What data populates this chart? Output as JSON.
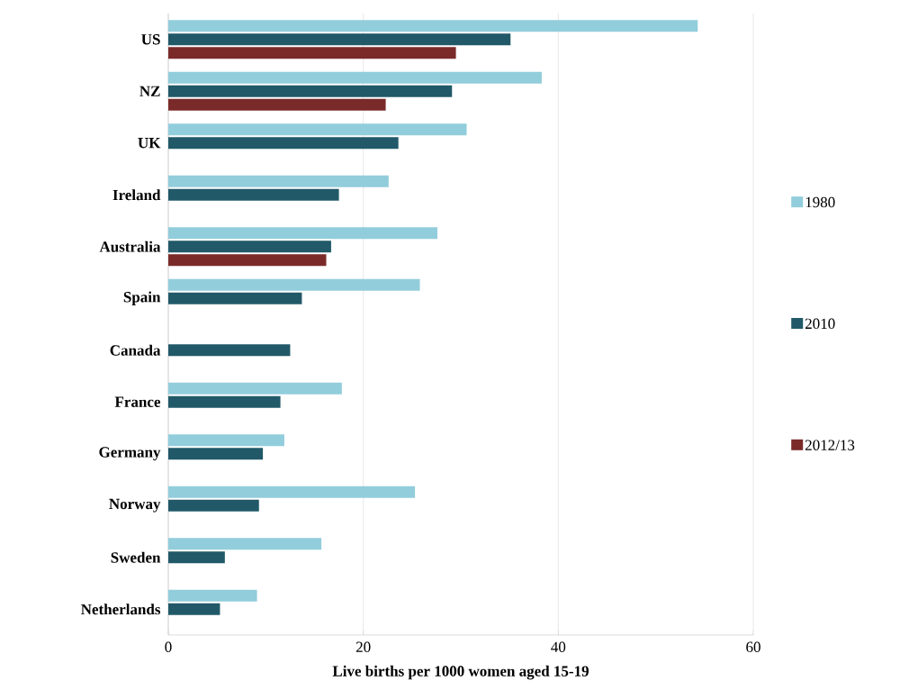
{
  "chart_data": {
    "type": "bar",
    "orientation": "horizontal",
    "xlabel": "Live births per 1000  women aged 15-19",
    "categories": [
      "US",
      "NZ",
      "UK",
      "Ireland",
      "Australia",
      "Spain",
      "Canada",
      "France",
      "Germany",
      "Norway",
      "Sweden",
      "Netherlands"
    ],
    "series": [
      {
        "name": "1980",
        "color": "#92cddc",
        "values": [
          54.3,
          38.3,
          30.6,
          22.6,
          27.6,
          25.8,
          null,
          17.8,
          11.9,
          25.3,
          15.7,
          9.1
        ]
      },
      {
        "name": "2010",
        "color": "#215968",
        "values": [
          35.1,
          29.1,
          23.6,
          17.5,
          16.7,
          13.7,
          12.5,
          11.5,
          9.7,
          9.3,
          5.8,
          5.3
        ]
      },
      {
        "name": "2012/13",
        "color": "#7b2a2a",
        "values": [
          29.5,
          22.3,
          null,
          null,
          16.2,
          null,
          null,
          null,
          null,
          null,
          null,
          null
        ]
      }
    ],
    "xlim": [
      0,
      60
    ],
    "xticks": [
      0,
      20,
      40,
      60
    ],
    "grid": "x",
    "legend": "right"
  }
}
